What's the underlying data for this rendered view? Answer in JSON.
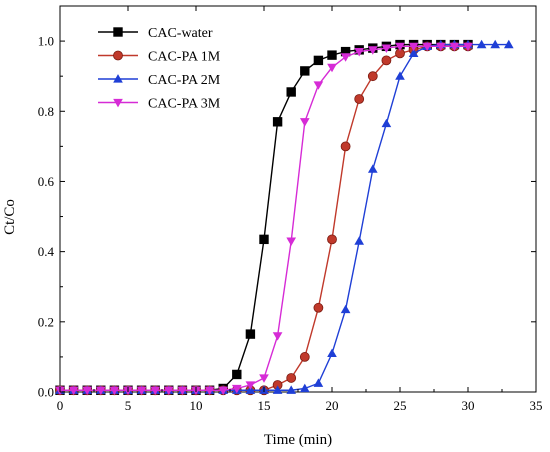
{
  "chart_data": {
    "type": "line",
    "title": "",
    "xlabel": "Time (min)",
    "ylabel": "Ct/Co",
    "xlim": [
      0,
      35
    ],
    "ylim": [
      0,
      1.1
    ],
    "xticks": [
      "0",
      "5",
      "10",
      "15",
      "20",
      "25",
      "30",
      "35"
    ],
    "yticks": [
      "0.0",
      "0.2",
      "0.4",
      "0.6",
      "0.8",
      "1.0"
    ],
    "grid": false,
    "legend_position": "top-left",
    "series": [
      {
        "name": "CAC-water",
        "color": "#000000",
        "marker": "square",
        "x": [
          0,
          1,
          2,
          3,
          4,
          5,
          6,
          7,
          8,
          9,
          10,
          11,
          12,
          13,
          14,
          15,
          16,
          17,
          18,
          19,
          20,
          21,
          22,
          23,
          24,
          25,
          26,
          27,
          28,
          29,
          30
        ],
        "y": [
          0.005,
          0.005,
          0.005,
          0.005,
          0.005,
          0.005,
          0.005,
          0.005,
          0.005,
          0.005,
          0.005,
          0.005,
          0.01,
          0.05,
          0.165,
          0.435,
          0.77,
          0.855,
          0.915,
          0.945,
          0.96,
          0.97,
          0.975,
          0.98,
          0.985,
          0.99,
          0.99,
          0.99,
          0.99,
          0.99,
          0.99
        ]
      },
      {
        "name": "CAC-PA 1M",
        "color": "#c0392b",
        "marker": "circle",
        "x": [
          0,
          1,
          2,
          3,
          4,
          5,
          6,
          7,
          8,
          9,
          10,
          11,
          12,
          13,
          14,
          15,
          16,
          17,
          18,
          19,
          20,
          21,
          22,
          23,
          24,
          25,
          26,
          27,
          28,
          29,
          30
        ],
        "y": [
          0.005,
          0.005,
          0.005,
          0.005,
          0.005,
          0.005,
          0.005,
          0.005,
          0.005,
          0.005,
          0.005,
          0.005,
          0.005,
          0.005,
          0.005,
          0.005,
          0.02,
          0.04,
          0.1,
          0.24,
          0.435,
          0.7,
          0.835,
          0.9,
          0.945,
          0.965,
          0.975,
          0.985,
          0.985,
          0.985,
          0.985
        ]
      },
      {
        "name": "CAC-PA 2M",
        "color": "#1f3fd6",
        "marker": "triangle-up",
        "x": [
          0,
          1,
          2,
          3,
          4,
          5,
          6,
          7,
          8,
          9,
          10,
          11,
          12,
          13,
          14,
          15,
          16,
          17,
          18,
          19,
          20,
          21,
          22,
          23,
          24,
          25,
          26,
          27,
          28,
          29,
          30,
          31,
          32,
          33
        ],
        "y": [
          0.005,
          0.005,
          0.005,
          0.005,
          0.005,
          0.005,
          0.005,
          0.005,
          0.005,
          0.005,
          0.005,
          0.005,
          0.005,
          0.005,
          0.005,
          0.005,
          0.005,
          0.005,
          0.01,
          0.025,
          0.11,
          0.235,
          0.43,
          0.635,
          0.765,
          0.9,
          0.965,
          0.985,
          0.99,
          0.99,
          0.99,
          0.99,
          0.99,
          0.99
        ]
      },
      {
        "name": "CAC-PA 3M",
        "color": "#d62bd6",
        "marker": "triangle-down",
        "x": [
          0,
          1,
          2,
          3,
          4,
          5,
          6,
          7,
          8,
          9,
          10,
          11,
          12,
          13,
          14,
          15,
          16,
          17,
          18,
          19,
          20,
          21,
          22,
          23,
          24,
          25,
          26,
          27,
          28,
          29,
          30
        ],
        "y": [
          0.005,
          0.005,
          0.005,
          0.005,
          0.005,
          0.005,
          0.005,
          0.005,
          0.005,
          0.005,
          0.005,
          0.005,
          0.005,
          0.01,
          0.02,
          0.04,
          0.16,
          0.43,
          0.77,
          0.875,
          0.925,
          0.955,
          0.97,
          0.975,
          0.98,
          0.985,
          0.985,
          0.985,
          0.985,
          0.985,
          0.985
        ]
      }
    ]
  }
}
